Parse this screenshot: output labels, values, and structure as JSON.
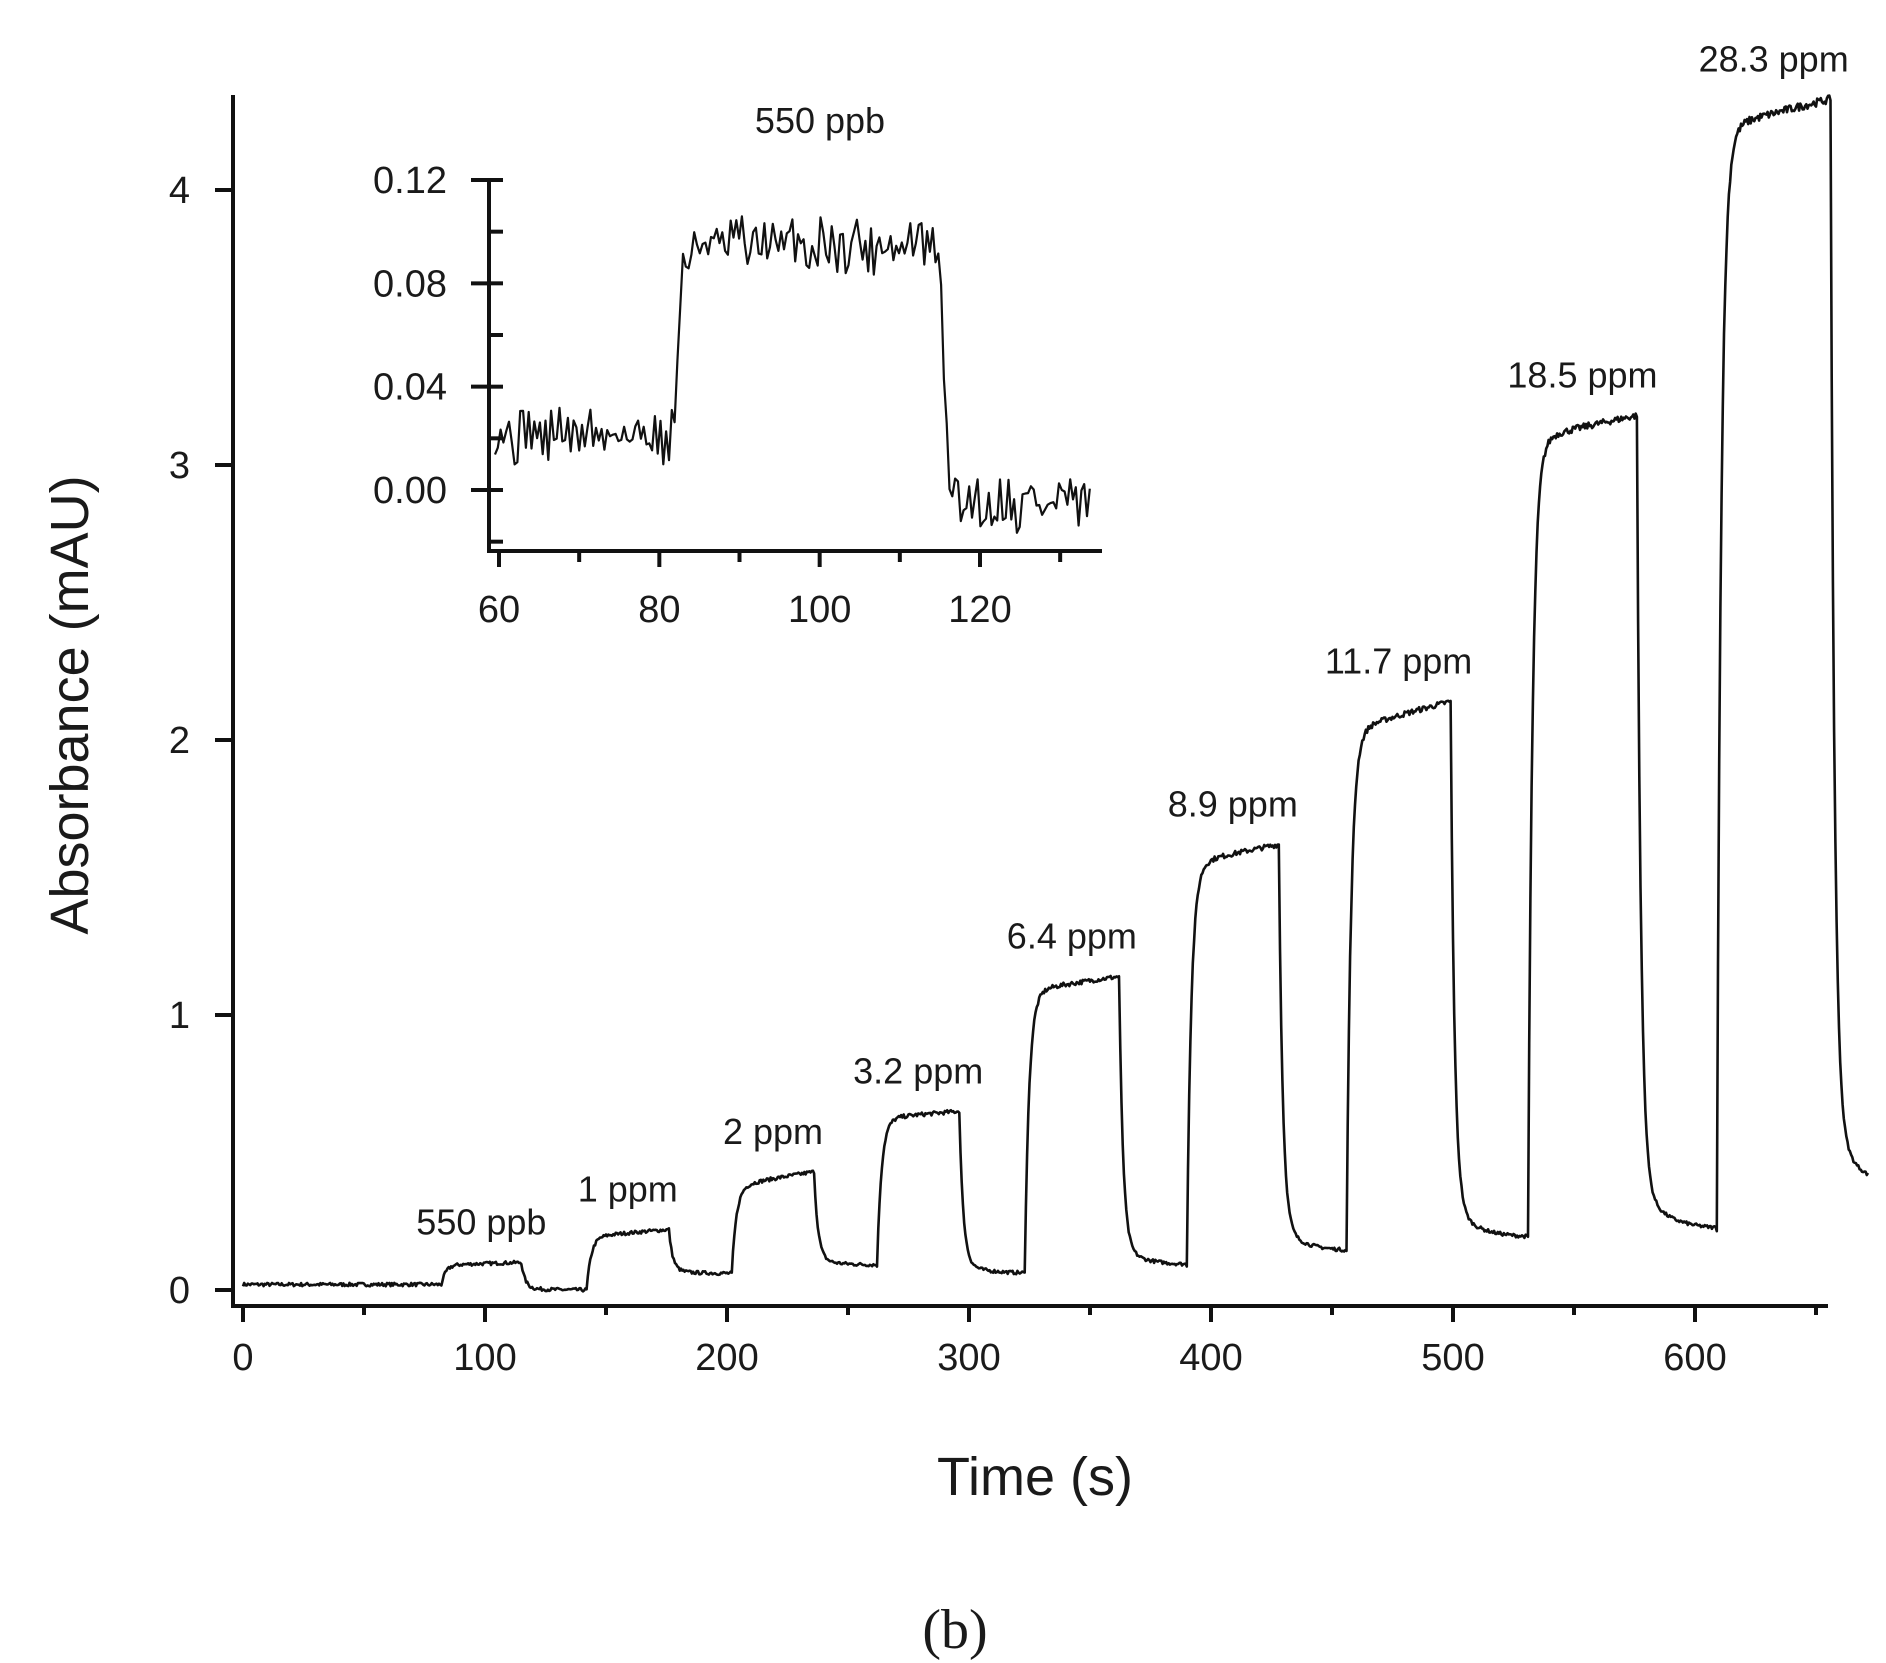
{
  "chart_data": [
    {
      "type": "line",
      "name": "main-response",
      "xlabel": "Time (s)",
      "ylabel": "Absorbance (mAU)",
      "xlim": [
        -5,
        675
      ],
      "ylim": [
        -0.08,
        4.38
      ],
      "xticks": [
        0,
        100,
        200,
        300,
        400,
        500,
        600
      ],
      "xtick_labels": [
        "0",
        "100",
        "200",
        "300",
        "400",
        "500",
        "600"
      ],
      "yticks": [
        0,
        1,
        2,
        3,
        4
      ],
      "ytick_labels": [
        "0",
        "1",
        "2",
        "3",
        "4"
      ],
      "baseline_start": 0.02,
      "end_time": 672,
      "steps": [
        {
          "label": "550 ppb",
          "on": 82,
          "off": 115,
          "plateau_start": 0.09,
          "plateau_end": 0.1,
          "baseline_after": 0.0
        },
        {
          "label": "1 ppm",
          "on": 142,
          "off": 176,
          "plateau_start": 0.19,
          "plateau_end": 0.22,
          "baseline_after": 0.06
        },
        {
          "label": "2 ppm",
          "on": 202,
          "off": 236,
          "plateau_start": 0.37,
          "plateau_end": 0.43,
          "baseline_after": 0.09
        },
        {
          "label": "3.2 ppm",
          "on": 262,
          "off": 296,
          "plateau_start": 0.62,
          "plateau_end": 0.65,
          "baseline_after": 0.06
        },
        {
          "label": "6.4 ppm",
          "on": 323,
          "off": 362,
          "plateau_start": 1.08,
          "plateau_end": 1.14,
          "baseline_after": 0.09
        },
        {
          "label": "8.9 ppm",
          "on": 390,
          "off": 428,
          "plateau_start": 1.54,
          "plateau_end": 1.62,
          "baseline_after": 0.14
        },
        {
          "label": "11.7 ppm",
          "on": 456,
          "off": 499,
          "plateau_start": 2.02,
          "plateau_end": 2.14,
          "baseline_after": 0.19
        },
        {
          "label": "18.5 ppm",
          "on": 531,
          "off": 576,
          "plateau_start": 3.08,
          "plateau_end": 3.18,
          "baseline_after": 0.22
        },
        {
          "label": "28.3 ppm",
          "on": 609,
          "off": 656,
          "plateau_start": 4.21,
          "plateau_end": 4.33,
          "baseline_after": 0.37
        }
      ],
      "annotations": [
        "550 ppb",
        "1 ppm",
        "2 ppm",
        "3.2 ppm",
        "6.4 ppm",
        "8.9 ppm",
        "11.7 ppm",
        "18.5 ppm",
        "28.3 ppm"
      ]
    },
    {
      "type": "line",
      "name": "inset-550ppb",
      "title": "550 ppb",
      "xlim": [
        59,
        134
      ],
      "ylim": [
        -0.02,
        0.12
      ],
      "xticks": [
        60,
        80,
        100,
        120
      ],
      "xtick_labels": [
        "60",
        "80",
        "100",
        "120"
      ],
      "yticks": [
        0.0,
        0.04,
        0.08,
        0.12
      ],
      "ytick_labels": [
        "0.00",
        "0.04",
        "0.08",
        "0.12"
      ],
      "baseline_before": 0.022,
      "on": 82,
      "plateau": 0.095,
      "off": 115,
      "baseline_after": -0.005,
      "noise_amplitude": 0.01
    }
  ],
  "panel_label": "(b)"
}
